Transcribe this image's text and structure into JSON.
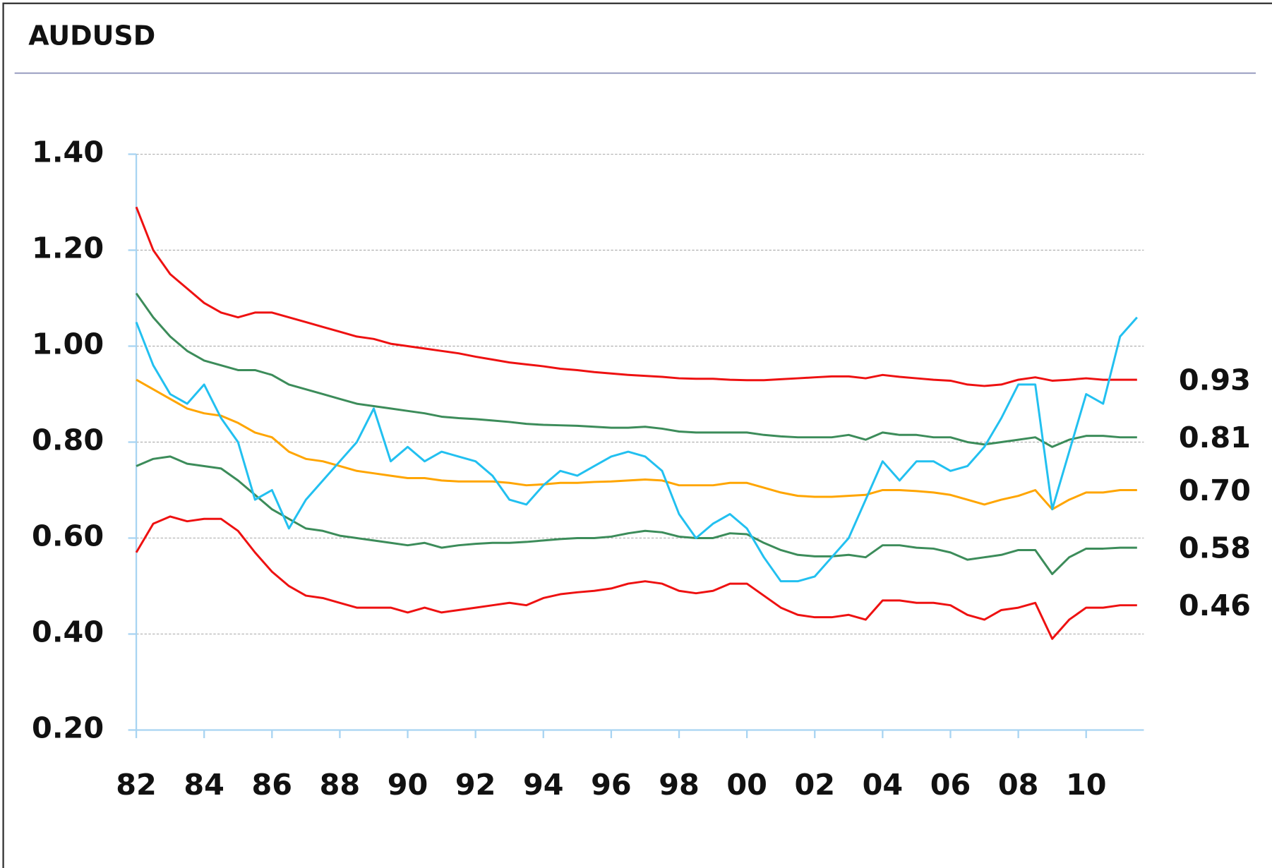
{
  "chart_data": {
    "type": "line",
    "title": "AUDUSD",
    "x": [
      1982,
      1982.5,
      1983,
      1983.5,
      1984,
      1984.5,
      1985,
      1985.5,
      1986,
      1986.5,
      1987,
      1987.5,
      1988,
      1988.5,
      1989,
      1989.5,
      1990,
      1990.5,
      1991,
      1991.5,
      1992,
      1992.5,
      1993,
      1993.5,
      1994,
      1994.5,
      1995,
      1995.5,
      1996,
      1996.5,
      1997,
      1997.5,
      1998,
      1998.5,
      1999,
      1999.5,
      2000,
      2000.5,
      2001,
      2001.5,
      2002,
      2002.5,
      2003,
      2003.5,
      2004,
      2004.5,
      2005,
      2005.5,
      2006,
      2006.5,
      2007,
      2007.5,
      2008,
      2008.5,
      2009,
      2009.5,
      2010,
      2010.5,
      2011,
      2011.5
    ],
    "series": [
      {
        "color": "#ee1111",
        "values": [
          1.29,
          1.2,
          1.15,
          1.12,
          1.09,
          1.07,
          1.06,
          1.07,
          1.07,
          1.06,
          1.05,
          1.04,
          1.03,
          1.02,
          1.015,
          1.005,
          1.0,
          0.995,
          0.99,
          0.985,
          0.978,
          0.972,
          0.966,
          0.962,
          0.958,
          0.953,
          0.95,
          0.946,
          0.943,
          0.94,
          0.938,
          0.936,
          0.933,
          0.932,
          0.932,
          0.93,
          0.929,
          0.929,
          0.931,
          0.933,
          0.935,
          0.937,
          0.937,
          0.933,
          0.94,
          0.936,
          0.933,
          0.93,
          0.928,
          0.92,
          0.917,
          0.92,
          0.93,
          0.935,
          0.928,
          0.93,
          0.933,
          0.93,
          0.93,
          0.93
        ]
      },
      {
        "color": "#3c8c5a",
        "values": [
          1.11,
          1.06,
          1.02,
          0.99,
          0.97,
          0.96,
          0.95,
          0.95,
          0.94,
          0.92,
          0.91,
          0.9,
          0.89,
          0.88,
          0.875,
          0.87,
          0.865,
          0.86,
          0.853,
          0.85,
          0.848,
          0.845,
          0.842,
          0.838,
          0.836,
          0.835,
          0.834,
          0.832,
          0.83,
          0.83,
          0.832,
          0.828,
          0.822,
          0.82,
          0.82,
          0.82,
          0.82,
          0.815,
          0.812,
          0.81,
          0.81,
          0.81,
          0.815,
          0.805,
          0.82,
          0.815,
          0.815,
          0.81,
          0.81,
          0.8,
          0.795,
          0.8,
          0.805,
          0.81,
          0.79,
          0.805,
          0.813,
          0.813,
          0.81,
          0.81
        ]
      },
      {
        "color": "#ffa500",
        "values": [
          0.93,
          0.91,
          0.89,
          0.87,
          0.86,
          0.855,
          0.84,
          0.82,
          0.81,
          0.78,
          0.765,
          0.76,
          0.75,
          0.74,
          0.735,
          0.73,
          0.725,
          0.725,
          0.72,
          0.718,
          0.718,
          0.718,
          0.715,
          0.71,
          0.712,
          0.715,
          0.715,
          0.717,
          0.718,
          0.72,
          0.722,
          0.72,
          0.71,
          0.71,
          0.71,
          0.715,
          0.715,
          0.705,
          0.695,
          0.688,
          0.686,
          0.686,
          0.688,
          0.69,
          0.7,
          0.7,
          0.698,
          0.695,
          0.69,
          0.68,
          0.67,
          0.68,
          0.688,
          0.7,
          0.66,
          0.68,
          0.695,
          0.695,
          0.7,
          0.7
        ]
      },
      {
        "color": "#3c8c5a",
        "values": [
          0.75,
          0.765,
          0.77,
          0.755,
          0.75,
          0.745,
          0.72,
          0.69,
          0.66,
          0.64,
          0.62,
          0.615,
          0.605,
          0.6,
          0.595,
          0.59,
          0.585,
          0.59,
          0.58,
          0.585,
          0.588,
          0.59,
          0.59,
          0.592,
          0.595,
          0.598,
          0.6,
          0.6,
          0.603,
          0.61,
          0.615,
          0.612,
          0.603,
          0.6,
          0.6,
          0.61,
          0.608,
          0.59,
          0.575,
          0.565,
          0.562,
          0.562,
          0.565,
          0.56,
          0.585,
          0.585,
          0.58,
          0.578,
          0.57,
          0.555,
          0.56,
          0.565,
          0.575,
          0.575,
          0.525,
          0.56,
          0.578,
          0.578,
          0.58,
          0.58
        ]
      },
      {
        "color": "#ee1111",
        "values": [
          0.57,
          0.63,
          0.645,
          0.635,
          0.64,
          0.64,
          0.615,
          0.57,
          0.53,
          0.5,
          0.48,
          0.475,
          0.465,
          0.455,
          0.455,
          0.455,
          0.445,
          0.455,
          0.445,
          0.45,
          0.455,
          0.46,
          0.465,
          0.46,
          0.475,
          0.483,
          0.487,
          0.49,
          0.495,
          0.505,
          0.51,
          0.505,
          0.49,
          0.485,
          0.49,
          0.505,
          0.505,
          0.48,
          0.455,
          0.44,
          0.435,
          0.435,
          0.44,
          0.43,
          0.47,
          0.47,
          0.465,
          0.465,
          0.46,
          0.44,
          0.43,
          0.45,
          0.455,
          0.465,
          0.39,
          0.43,
          0.455,
          0.455,
          0.46,
          0.46
        ]
      },
      {
        "color": "#22c0f0",
        "values": [
          1.05,
          0.96,
          0.9,
          0.88,
          0.92,
          0.85,
          0.8,
          0.68,
          0.7,
          0.62,
          0.68,
          0.72,
          0.76,
          0.8,
          0.87,
          0.76,
          0.79,
          0.76,
          0.78,
          0.77,
          0.76,
          0.73,
          0.68,
          0.67,
          0.71,
          0.74,
          0.73,
          0.75,
          0.77,
          0.78,
          0.77,
          0.74,
          0.65,
          0.6,
          0.63,
          0.65,
          0.62,
          0.56,
          0.51,
          0.51,
          0.52,
          0.56,
          0.6,
          0.68,
          0.76,
          0.72,
          0.76,
          0.76,
          0.74,
          0.75,
          0.79,
          0.85,
          0.92,
          0.92,
          0.66,
          0.78,
          0.9,
          0.88,
          1.02,
          1.06
        ]
      }
    ],
    "annotations": [
      {
        "value": 0.93,
        "label": "0.93"
      },
      {
        "value": 0.81,
        "label": "0.81"
      },
      {
        "value": 0.7,
        "label": "0.70"
      },
      {
        "value": 0.58,
        "label": "0.58"
      },
      {
        "value": 0.46,
        "label": "0.46"
      }
    ],
    "xlim": [
      1982,
      2011.7
    ],
    "xticks": [
      {
        "value": 1982,
        "label": "82"
      },
      {
        "value": 1984,
        "label": "84"
      },
      {
        "value": 1986,
        "label": "86"
      },
      {
        "value": 1988,
        "label": "88"
      },
      {
        "value": 1990,
        "label": "90"
      },
      {
        "value": 1992,
        "label": "92"
      },
      {
        "value": 1994,
        "label": "94"
      },
      {
        "value": 1996,
        "label": "96"
      },
      {
        "value": 1998,
        "label": "98"
      },
      {
        "value": 2000,
        "label": "00"
      },
      {
        "value": 2002,
        "label": "02"
      },
      {
        "value": 2004,
        "label": "04"
      },
      {
        "value": 2006,
        "label": "06"
      },
      {
        "value": 2008,
        "label": "08"
      },
      {
        "value": 2010,
        "label": "10"
      }
    ],
    "ylim": [
      0.2,
      1.4
    ],
    "yticks": [
      {
        "value": 0.2,
        "label": "0.20"
      },
      {
        "value": 0.4,
        "label": "0.40"
      },
      {
        "value": 0.6,
        "label": "0.60"
      },
      {
        "value": 0.8,
        "label": "0.80"
      },
      {
        "value": 1.0,
        "label": "1.00"
      },
      {
        "value": 1.2,
        "label": "1.20"
      },
      {
        "value": 1.4,
        "label": "1.40"
      }
    ],
    "grid": true
  }
}
